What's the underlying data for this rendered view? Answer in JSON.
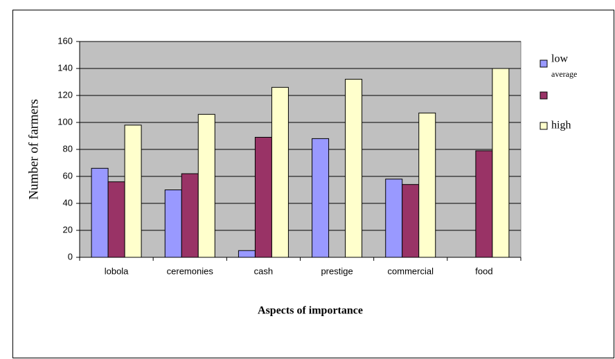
{
  "chart_data": {
    "type": "bar",
    "x_label": "Aspects of  importance",
    "y_label": "Number of farmers",
    "categories": [
      "lobola",
      "ceremonies",
      "cash",
      "prestige",
      "commercial",
      "food"
    ],
    "series": [
      {
        "name": "low",
        "color": "#9999ff",
        "values": [
          66,
          50,
          5,
          88,
          58,
          null
        ]
      },
      {
        "name": "average",
        "color": "#993366",
        "values": [
          56,
          62,
          89,
          null,
          54,
          79
        ]
      },
      {
        "name": "high",
        "color": "#ffffcc",
        "values": [
          98,
          106,
          126,
          132,
          107,
          140
        ]
      }
    ],
    "ylim": [
      0,
      160
    ],
    "yticks": [
      0,
      20,
      40,
      60,
      80,
      100,
      120,
      140,
      160
    ],
    "grid": true,
    "legend": "right"
  }
}
